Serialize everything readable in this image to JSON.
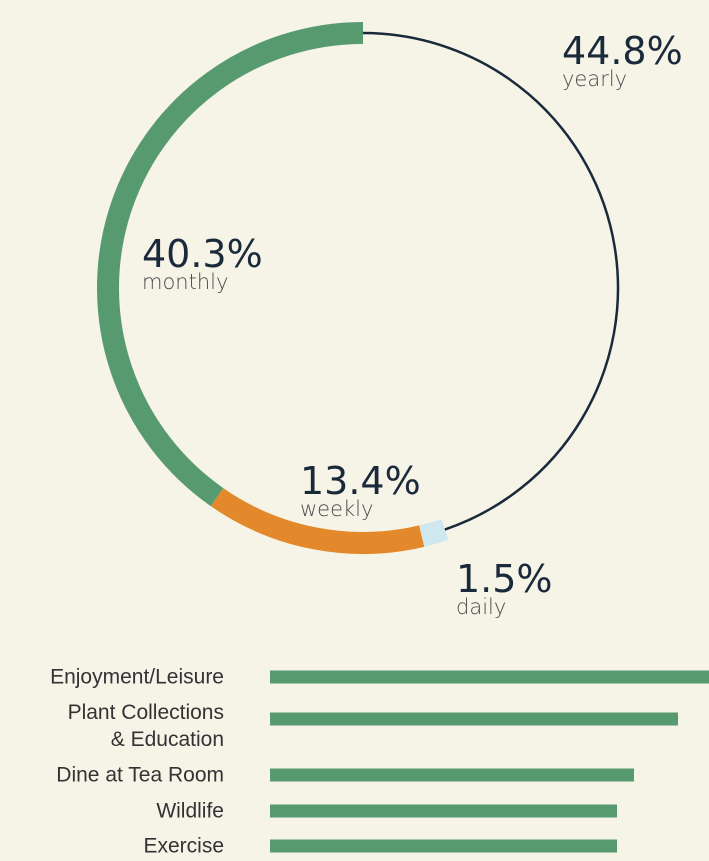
{
  "chart_data": [
    {
      "type": "ring",
      "categories": [
        "monthly",
        "weekly",
        "daily",
        "yearly"
      ],
      "values": [
        40.3,
        13.4,
        1.5,
        44.8
      ],
      "value_labels": [
        "40.3%",
        "13.4%",
        "1.5%",
        "44.8%"
      ],
      "colors": [
        "#579a70",
        "#e3892b",
        "#cfe8ef",
        "#1a2a3b"
      ]
    },
    {
      "type": "hbar",
      "categories": [
        "Enjoyment/Leisure",
        "Plant Collections\n& Education",
        "Dine at Tea Room",
        "Wildlife",
        "Exercise"
      ],
      "values": [
        100,
        93,
        83,
        79,
        79
      ],
      "xlim": [
        0,
        100
      ],
      "color": "#579a70"
    }
  ]
}
